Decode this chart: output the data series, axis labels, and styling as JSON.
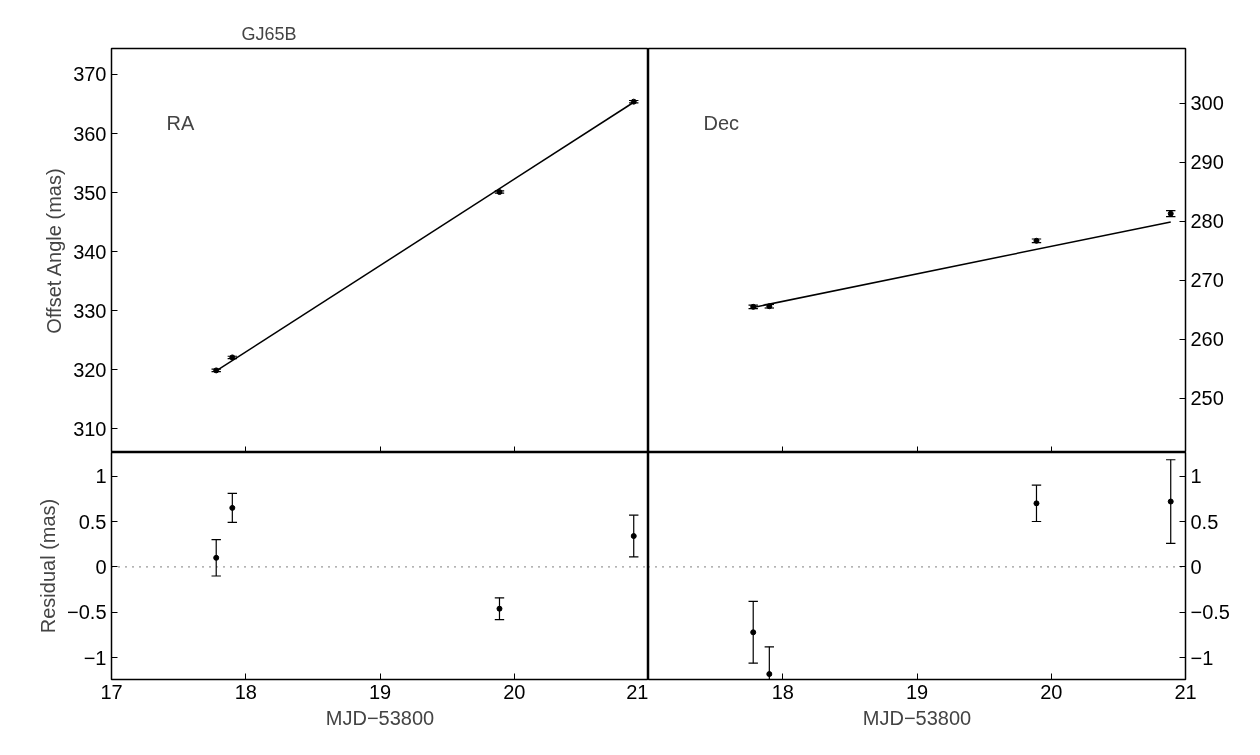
{
  "chart_data": [
    {
      "type": "scatter",
      "title": "GJ65B",
      "ylabel": "Offset Angle (mas)",
      "annotations": [
        "RA"
      ],
      "xlim": [
        17,
        21
      ],
      "xticks": [
        17,
        18,
        19,
        20,
        21
      ],
      "ylim": [
        306,
        374.4
      ],
      "yticks": [
        310,
        320,
        330,
        340,
        350,
        360,
        370
      ],
      "tick_labels": "y",
      "marker": "circle",
      "grid": false,
      "series": [
        {
          "color": "#000000",
          "x": [
            17.78,
            17.9,
            19.89,
            20.89
          ],
          "values": [
            319.9,
            322.1,
            350.1,
            365.4
          ],
          "errors": [
            0.2,
            0.2,
            0.2,
            0.2
          ]
        },
        {
          "type": "line",
          "marker": "none",
          "color": "#000000",
          "x": [
            17.78,
            20.89
          ],
          "values": [
            319.8,
            365.3
          ]
        }
      ]
    },
    {
      "type": "scatter",
      "annotations": [
        "Dec"
      ],
      "xlim": [
        17,
        21
      ],
      "xticks": [
        17,
        18,
        19,
        20,
        21
      ],
      "y2lim": [
        240.8,
        309.3
      ],
      "y2ticks": [
        250,
        260,
        270,
        280,
        290,
        300
      ],
      "tick_labels": "y",
      "marker": "circle",
      "grid": false,
      "series": [
        {
          "axis": "y2",
          "color": "#000000",
          "x": [
            17.78,
            17.9,
            19.89,
            20.89
          ],
          "values": [
            265.5,
            265.6,
            276.7,
            281.3
          ],
          "errors": [
            0.3,
            0.3,
            0.3,
            0.5
          ]
        },
        {
          "type": "line",
          "marker": "none",
          "axis": "y2",
          "color": "#000000",
          "x": [
            17.78,
            20.89
          ],
          "values": [
            265.4,
            279.9
          ]
        }
      ]
    },
    {
      "type": "scatter",
      "xlabel": "MJD−53800",
      "ylabel": "Residual (mas)",
      "xlim": [
        17,
        21
      ],
      "xticks": [
        17,
        18,
        19,
        20,
        21
      ],
      "ylim": [
        -1.24,
        1.26
      ],
      "yticks": [
        {
          "value": -1,
          "label": "−1"
        },
        {
          "value": -0.5,
          "label": "−0.5"
        },
        0,
        0.5,
        1
      ],
      "marker": "circle",
      "grid": false,
      "ref_lines": [
        {
          "axis": "y",
          "value": 0,
          "line_style": "dotted",
          "color": "#000000"
        }
      ],
      "series": [
        {
          "color": "#000000",
          "x": [
            17.78,
            17.9,
            19.89,
            20.89
          ],
          "values": [
            0.1,
            0.65,
            -0.46,
            0.34
          ],
          "errors": [
            0.2,
            0.16,
            0.12,
            0.23
          ]
        }
      ]
    },
    {
      "type": "scatter",
      "xlabel": "MJD−53800",
      "xlim": [
        17,
        21
      ],
      "xticks": [
        18,
        19,
        20,
        21
      ],
      "y2lim": [
        -1.24,
        1.26
      ],
      "y2ticks": [
        {
          "value": -1,
          "label": "−1"
        },
        {
          "value": -0.5,
          "label": "−0.5"
        },
        0,
        0.5,
        1
      ],
      "marker": "circle",
      "grid": false,
      "ref_lines": [
        {
          "axis": "y2",
          "value": 0,
          "line_style": "dotted",
          "color": "#000000"
        }
      ],
      "series": [
        {
          "axis": "y2",
          "color": "#000000",
          "x": [
            17.78,
            17.9,
            19.89,
            20.89
          ],
          "values": [
            -0.72,
            -1.18,
            0.7,
            0.72
          ],
          "errors": [
            0.34,
            [
              -1.24,
              -0.88
            ],
            0.2,
            0.46
          ]
        }
      ]
    }
  ]
}
